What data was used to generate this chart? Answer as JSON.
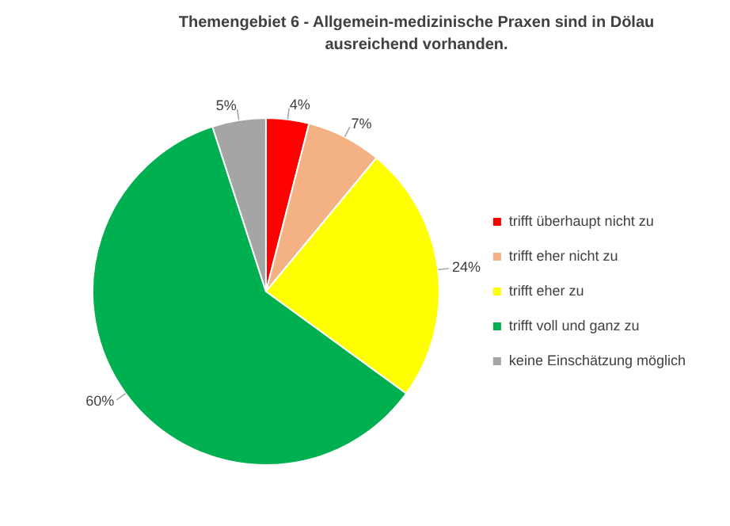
{
  "chart_data": {
    "type": "pie",
    "title": "Themengebiet 6   -   Allgemein-medizinische Praxen sind in Dölau ausreichend vorhanden.",
    "categories": [
      "trifft überhaupt nicht zu",
      "trifft eher nicht zu",
      "trifft eher zu",
      "trifft voll und ganz zu",
      "keine Einschätzung möglich"
    ],
    "values": [
      4,
      7,
      24,
      60,
      5
    ],
    "value_labels": [
      "4%",
      "7%",
      "24%",
      "60%",
      "5%"
    ],
    "colors": [
      "#ff0000",
      "#f4b183",
      "#ffff00",
      "#00b050",
      "#a5a5a5"
    ],
    "legend": "right"
  }
}
